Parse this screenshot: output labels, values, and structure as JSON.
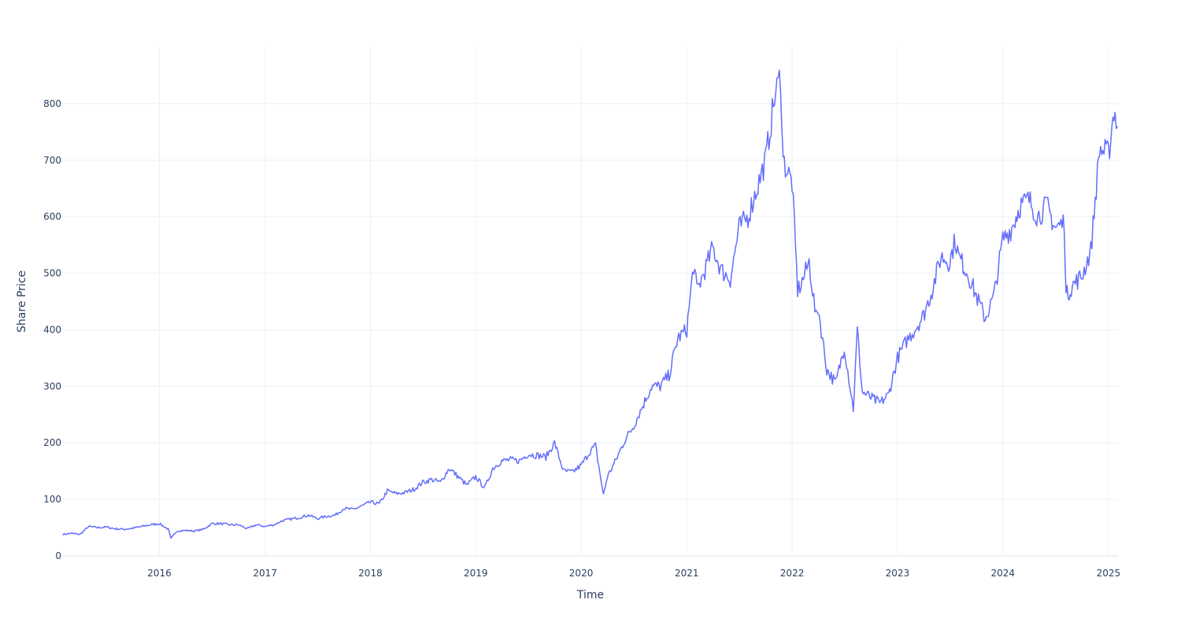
{
  "chart_data": {
    "type": "line",
    "title": "",
    "xlabel": "Time",
    "ylabel": "Share Price",
    "line_color": "#636efa",
    "grid": true,
    "legend": "none",
    "xlim": [
      "2015-02-01",
      "2025-02-03"
    ],
    "ylim": [
      0,
      900
    ],
    "x_ticks": [
      "2016",
      "2017",
      "2018",
      "2019",
      "2020",
      "2021",
      "2022",
      "2023",
      "2024",
      "2025"
    ],
    "y_ticks": [
      0,
      100,
      200,
      300,
      400,
      500,
      600,
      700,
      800
    ],
    "series": [
      {
        "x": [
          "2015-02-01",
          "2015-03-01",
          "2015-04-01",
          "2015-05-01",
          "2015-06-01",
          "2015-07-01",
          "2015-08-01",
          "2015-09-01",
          "2015-10-01",
          "2015-11-01",
          "2015-12-01",
          "2016-01-01",
          "2016-02-01",
          "2016-02-10",
          "2016-03-01",
          "2016-04-01",
          "2016-05-01",
          "2016-06-01",
          "2016-07-01",
          "2016-08-01",
          "2016-09-01",
          "2016-10-01",
          "2016-11-01",
          "2016-12-01",
          "2017-01-01",
          "2017-02-01",
          "2017-03-01",
          "2017-04-01",
          "2017-05-01",
          "2017-06-01",
          "2017-07-01",
          "2017-08-01",
          "2017-09-01",
          "2017-10-01",
          "2017-11-01",
          "2017-12-01",
          "2018-01-01",
          "2018-02-01",
          "2018-03-01",
          "2018-04-01",
          "2018-05-01",
          "2018-06-01",
          "2018-07-01",
          "2018-08-01",
          "2018-09-01",
          "2018-10-01",
          "2018-11-01",
          "2018-12-01",
          "2019-01-01",
          "2019-02-01",
          "2019-03-01",
          "2019-04-01",
          "2019-05-01",
          "2019-06-01",
          "2019-07-01",
          "2019-08-01",
          "2019-09-01",
          "2019-10-01",
          "2019-11-01",
          "2019-12-01",
          "2020-01-01",
          "2020-02-01",
          "2020-02-20",
          "2020-03-18",
          "2020-04-01",
          "2020-05-01",
          "2020-06-01",
          "2020-07-01",
          "2020-08-01",
          "2020-09-01",
          "2020-10-01",
          "2020-11-01",
          "2020-12-01",
          "2021-01-01",
          "2021-01-25",
          "2021-02-05",
          "2021-03-01",
          "2021-04-01",
          "2021-05-01",
          "2021-06-01",
          "2021-07-01",
          "2021-08-01",
          "2021-09-01",
          "2021-10-01",
          "2021-11-01",
          "2021-11-22",
          "2021-12-01",
          "2022-01-01",
          "2022-01-20",
          "2022-02-01",
          "2022-03-01",
          "2022-03-25",
          "2022-04-01",
          "2022-05-01",
          "2022-06-01",
          "2022-07-01",
          "2022-08-01",
          "2022-08-15",
          "2022-09-01",
          "2022-10-01",
          "2022-11-01",
          "2022-12-01",
          "2023-01-01",
          "2023-02-01",
          "2023-03-01",
          "2023-04-01",
          "2023-05-01",
          "2023-06-01",
          "2023-07-01",
          "2023-07-20",
          "2023-08-01",
          "2023-09-01",
          "2023-10-01",
          "2023-11-01",
          "2023-12-01",
          "2024-01-01",
          "2024-02-01",
          "2024-03-01",
          "2024-04-01",
          "2024-05-01",
          "2024-06-01",
          "2024-07-01",
          "2024-08-01",
          "2024-08-07",
          "2024-09-01",
          "2024-10-01",
          "2024-11-01",
          "2024-12-01",
          "2025-01-01",
          "2025-01-20",
          "2025-02-01"
        ],
        "y": [
          38,
          40,
          38,
          52,
          50,
          51,
          48,
          47,
          49,
          52,
          55,
          57,
          47,
          30,
          44,
          45,
          44,
          47,
          57,
          57,
          55,
          55,
          48,
          55,
          52,
          55,
          62,
          65,
          68,
          72,
          66,
          70,
          72,
          84,
          82,
          88,
          95,
          92,
          115,
          110,
          112,
          118,
          130,
          135,
          130,
          155,
          140,
          125,
          140,
          120,
          155,
          168,
          170,
          168,
          180,
          178,
          175,
          200,
          150,
          148,
          160,
          185,
          195,
          108,
          140,
          170,
          205,
          230,
          265,
          300,
          300,
          320,
          385,
          400,
          515,
          470,
          500,
          545,
          505,
          490,
          580,
          600,
          650,
          700,
          810,
          850,
          700,
          660,
          470,
          480,
          520,
          420,
          440,
          330,
          305,
          370,
          260,
          400,
          290,
          280,
          270,
          285,
          350,
          380,
          400,
          425,
          470,
          530,
          520,
          560,
          530,
          500,
          460,
          420,
          460,
          560,
          580,
          620,
          630,
          600,
          620,
          580,
          590,
          460,
          480,
          495,
          540,
          720,
          710,
          790,
          760
        ]
      }
    ]
  }
}
